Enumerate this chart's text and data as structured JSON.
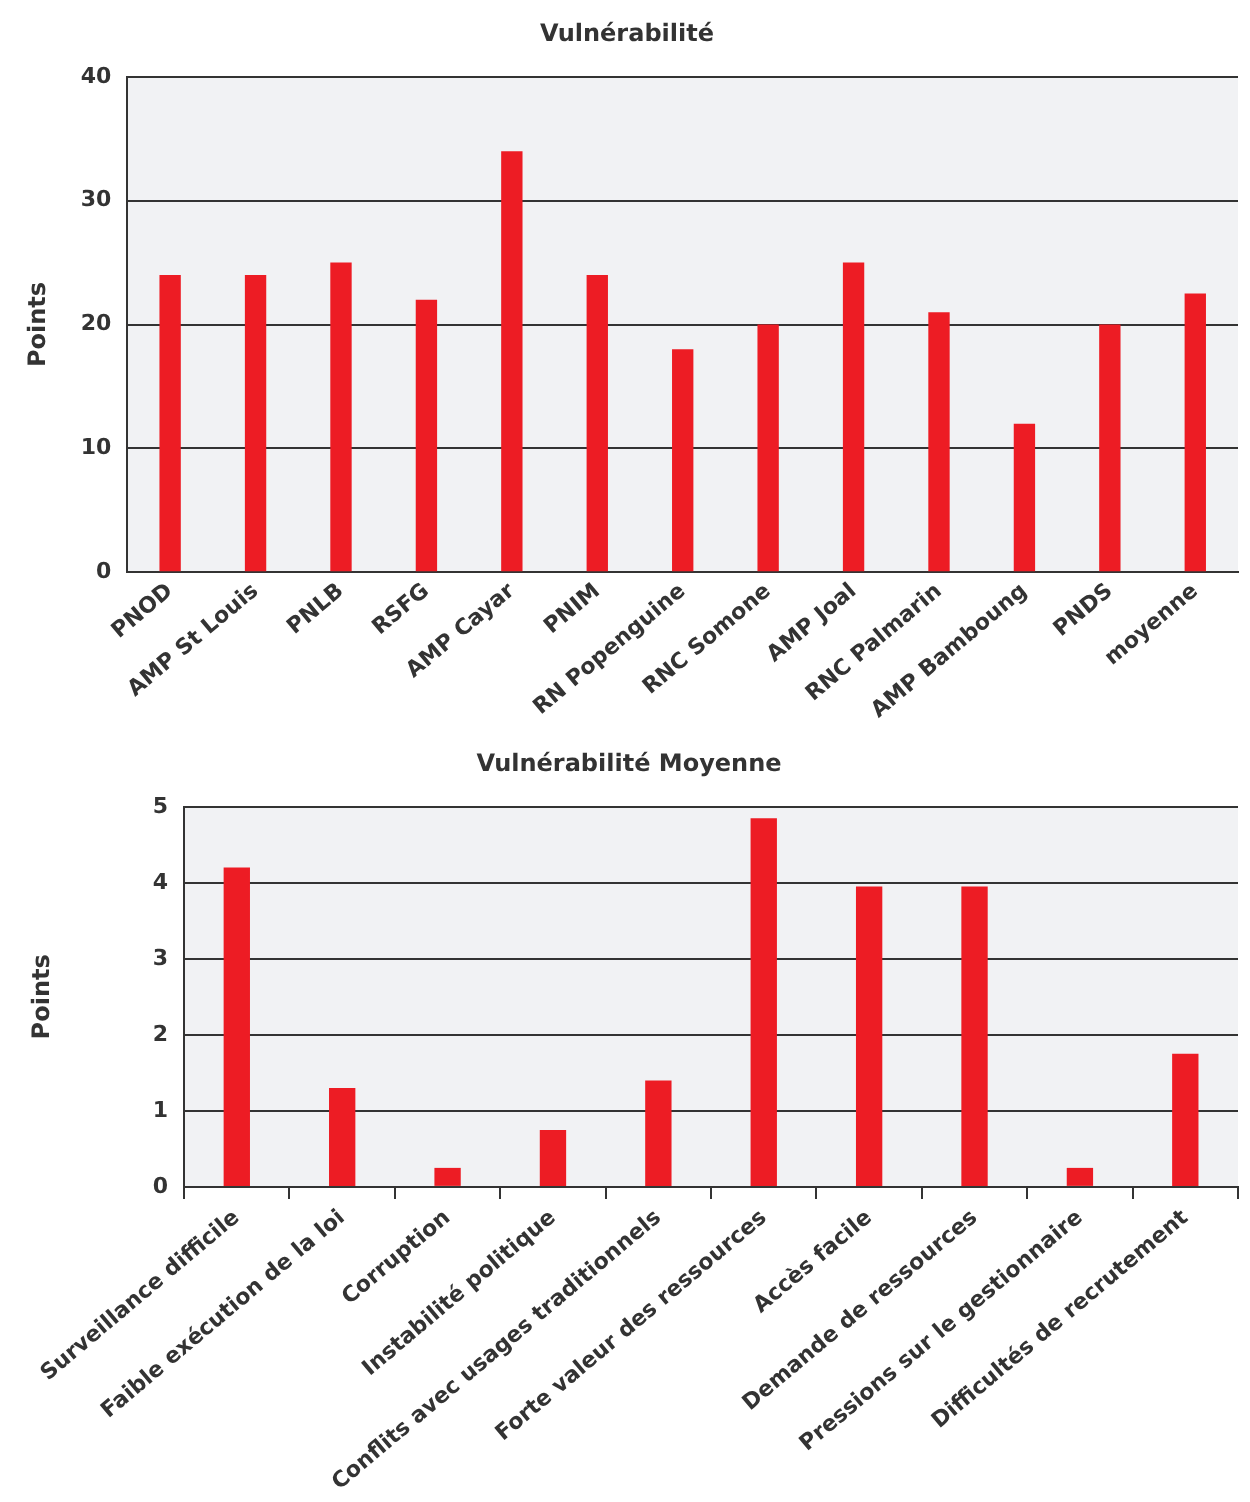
{
  "chart_data": [
    {
      "type": "bar",
      "title": "Vulnérabilité",
      "ylabel": "Points",
      "categories": [
        "PNOD",
        "AMP St Louis",
        "PNLB",
        "RSFG",
        "AMP Cayar",
        "PNIM",
        "RN Popenguine",
        "RNC Somone",
        "AMP Joal",
        "RNC Palmarin",
        "AMP Bamboung",
        "PNDS",
        "moyenne"
      ],
      "series": [
        {
          "color": "#ed1c24",
          "values": [
            24,
            24,
            25,
            22,
            34,
            24,
            18,
            20,
            25,
            21,
            12,
            20,
            22.5
          ]
        }
      ],
      "ylim": [
        0,
        40
      ],
      "yticks": [
        0,
        10,
        20,
        30,
        40
      ],
      "grid": "y",
      "legend": false
    },
    {
      "type": "bar",
      "title": "Vulnérabilité Moyenne",
      "ylabel": "Points",
      "categories": [
        "Surveillance difficile",
        "Faible exécution de la loi",
        "Corruption",
        "Instabilité politique",
        "Conflits avec usages traditionnels",
        "Forte valeur des ressources",
        "Accès facile",
        "Demande de ressources",
        "Pressions sur le gestionnaire",
        "Difficultés de recrutement"
      ],
      "series": [
        {
          "color": "#ed1c24",
          "values": [
            4.2,
            1.3,
            0.25,
            0.75,
            1.4,
            4.85,
            3.95,
            3.95,
            0.25,
            1.75
          ]
        }
      ],
      "ylim": [
        0,
        5
      ],
      "yticks": [
        0,
        1,
        2,
        3,
        4,
        5
      ],
      "grid": "y",
      "legend": false
    }
  ]
}
